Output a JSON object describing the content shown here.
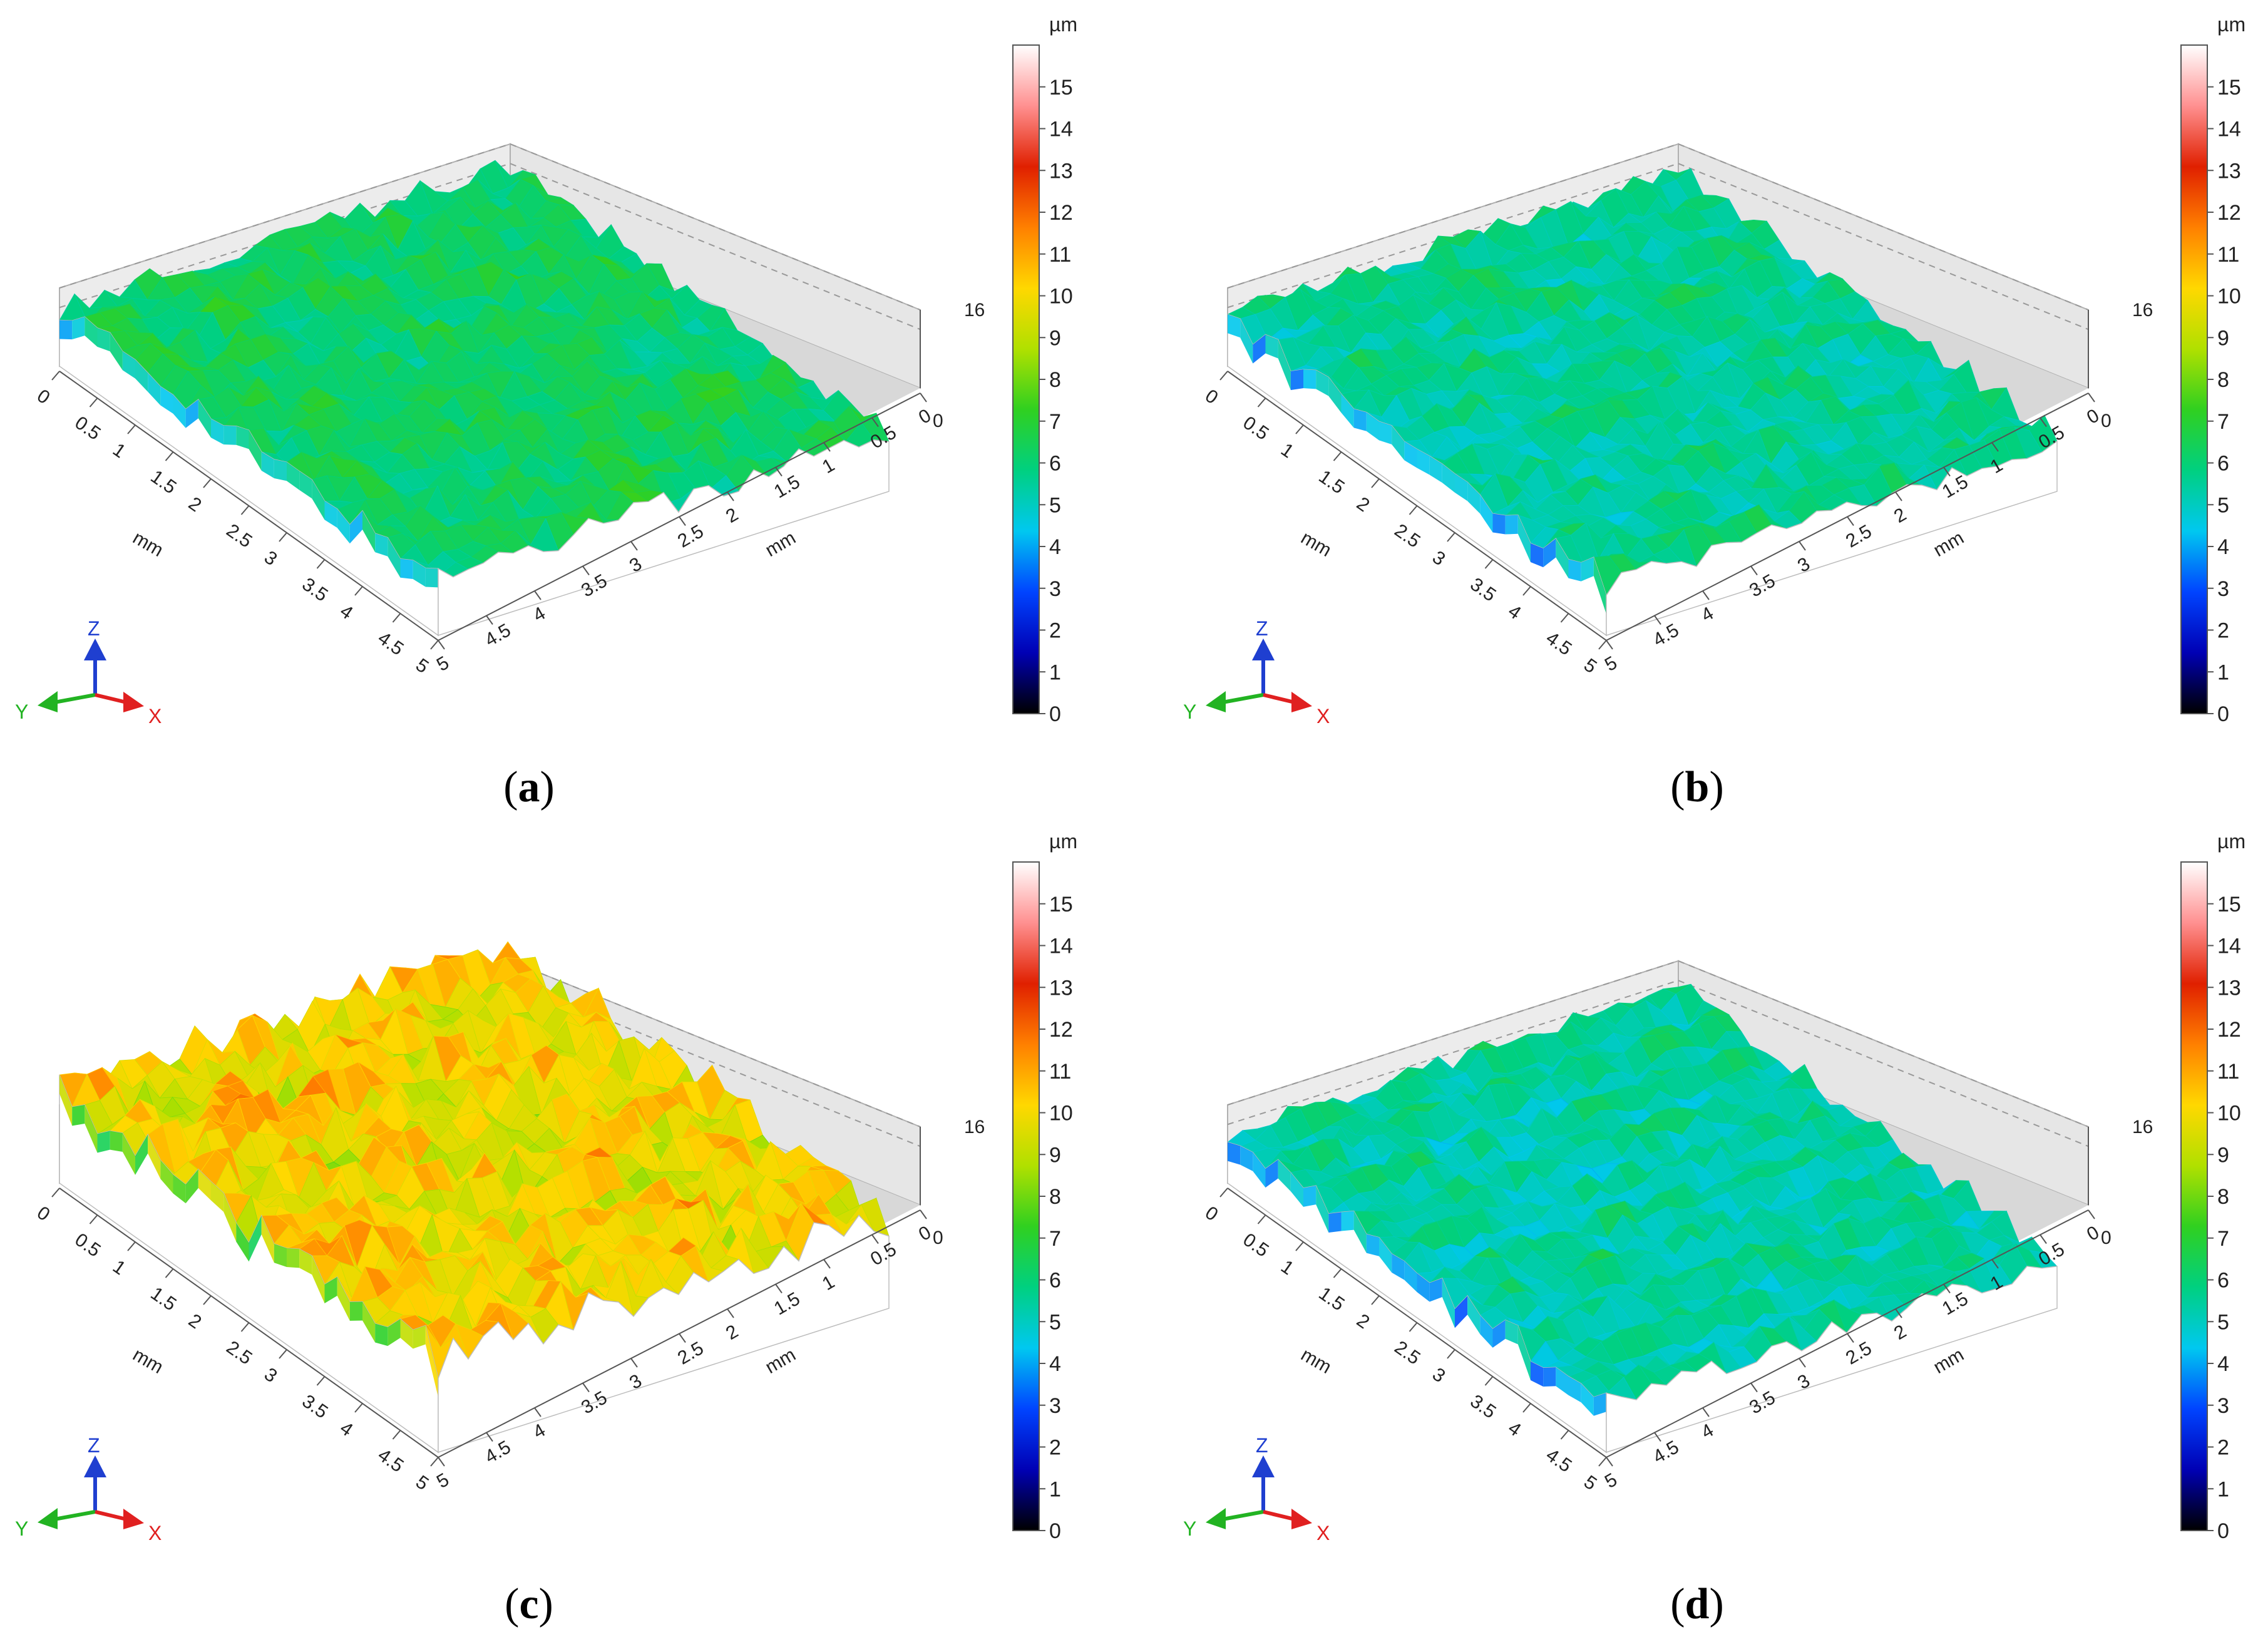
{
  "panels": [
    {
      "label": "a",
      "style": "rough",
      "mean_level": 6.3,
      "variation": 1.4,
      "grooves": false
    },
    {
      "label": "b",
      "style": "grooved",
      "mean_level": 5.6,
      "variation": 1.2,
      "grooves": true
    },
    {
      "label": "c",
      "style": "rough",
      "mean_level": 10.0,
      "variation": 2.2,
      "grooves": true
    },
    {
      "label": "d",
      "style": "grooved",
      "mean_level": 5.4,
      "variation": 1.1,
      "grooves": true
    }
  ],
  "caption_open": "(",
  "caption_close": ")",
  "colorbar": {
    "unit": "µm",
    "ticks": [
      "0",
      "1",
      "2",
      "3",
      "4",
      "5",
      "6",
      "7",
      "8",
      "9",
      "10",
      "11",
      "12",
      "13",
      "14",
      "15"
    ],
    "range": [
      0,
      16
    ]
  },
  "z_axis": {
    "top": "16",
    "bottom": "0"
  },
  "axis_unit": "mm",
  "front_ticks": [
    "0",
    "0.5",
    "1",
    "1.5",
    "2",
    "2.5",
    "3",
    "3.5",
    "4",
    "4.5",
    "5"
  ],
  "side_ticks": [
    "0",
    "0.5",
    "1",
    "1.5",
    "2",
    "2.5",
    "3",
    "3.5",
    "4",
    "4.5",
    "5"
  ],
  "triad": {
    "z": "Z",
    "y": "Y",
    "x": "X"
  },
  "colors": {
    "scale": [
      "#000000",
      "#0000b4",
      "#0044ff",
      "#00c8f0",
      "#00d080",
      "#30d020",
      "#b0e000",
      "#ffd800",
      "#ff8000",
      "#e02000",
      "#ff9090",
      "#ffffff"
    ],
    "axis_z": "#1f3fd0",
    "axis_y": "#22b322",
    "axis_x": "#e02020"
  }
}
